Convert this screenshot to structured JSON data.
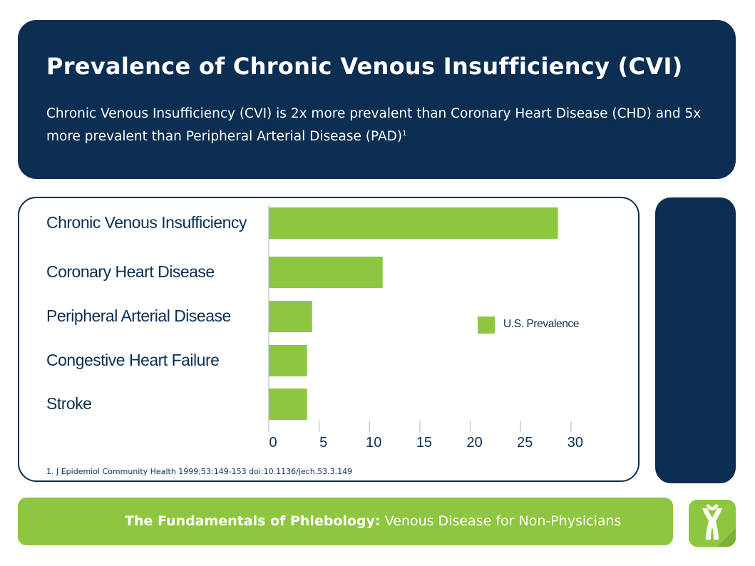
{
  "header": {
    "title": "Prevalence of Chronic Venous Insufficiency (CVI)",
    "subtitle": "Chronic Venous Insufficiency (CVI) is 2x more prevalent than Coronary Heart Disease (CHD) and 5x more prevalent than Peripheral Arterial Disease (PAD)",
    "subtitle_sup": "1"
  },
  "chart_data": {
    "type": "bar",
    "orientation": "horizontal",
    "categories": [
      "Chronic Venous Insufficiency",
      "Coronary Heart Disease",
      "Peripheral Arterial Disease",
      "Congestive Heart Failure",
      "Stroke"
    ],
    "series": [
      {
        "name": "U.S. Prevalence",
        "values": [
          28.7,
          11.3,
          4.3,
          3.8,
          3.8
        ]
      }
    ],
    "x_ticks": [
      0,
      5,
      10,
      15,
      20,
      25,
      30
    ],
    "xlim": [
      0,
      30
    ],
    "grid": false,
    "legend_position": "right",
    "bar_color": "#8dc63f"
  },
  "footnote": "1. J Epidemiol Community Health 1999;53:149-153 doi:10.1136/jech.53.3.149",
  "footer": {
    "bold": "The Fundamentals of Phlebology:",
    "regular": "Venous Disease for Non-Physicians"
  },
  "colors": {
    "navy": "#0b2e52",
    "green": "#8dc63f"
  },
  "icons": {
    "logo": "vein-logo-icon"
  }
}
